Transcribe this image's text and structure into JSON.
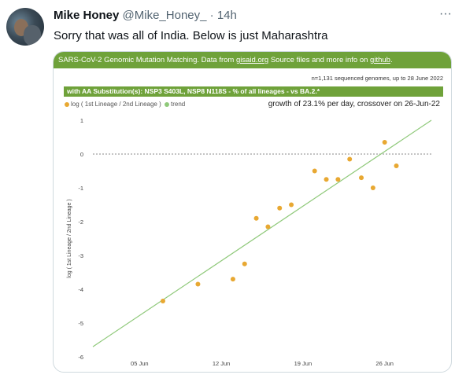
{
  "tweet": {
    "author_name": "Mike Honey",
    "author_handle": "@Mike_Honey_",
    "separator": "·",
    "time": "14h",
    "more_icon": "···",
    "text": "Sorry that was all of India. Below is just Maharashtra"
  },
  "chart": {
    "title_prefix": "SARS-CoV-2 Genomic Mutation Matching. Data from ",
    "title_link1": "gisaid.org",
    "title_mid": " Source files and more info on ",
    "title_link2": "github",
    "title_suffix": ".",
    "meta": "n=1,131 sequenced genomes, up to 28 June 2022",
    "band": "with AA Substitution(s): NSP3 S403L, NSP8 N118S - % of all lineages -  vs BA.2.*",
    "legend_series": "log ( 1st Lineage / 2nd Lineage )",
    "legend_trend": "trend",
    "growth_note": "growth of 23.1% per day, crossover on 26-Jun-22",
    "colors": {
      "accent": "#6fa23a",
      "points": "#e8a832",
      "trend": "#8fc97a",
      "legend_trend": "#8fc97a"
    }
  },
  "chart_data": {
    "type": "scatter",
    "ylabel": "log ( 1st Lineage / 2nd Lineage )",
    "xlabel": "",
    "x_ticks": [
      "05 Jun",
      "12 Jun",
      "19 Jun",
      "26 Jun"
    ],
    "ylim": [
      -6,
      1
    ],
    "y_ticks": [
      1,
      0,
      -1,
      -2,
      -3,
      -4,
      -5,
      -6
    ],
    "series": [
      {
        "name": "log ( 1st Lineage / 2nd Lineage )",
        "points": [
          {
            "x": "2022-06-07",
            "y": -4.35
          },
          {
            "x": "2022-06-10",
            "y": -3.85
          },
          {
            "x": "2022-06-13",
            "y": -3.7
          },
          {
            "x": "2022-06-14",
            "y": -3.25
          },
          {
            "x": "2022-06-15",
            "y": -1.9
          },
          {
            "x": "2022-06-16",
            "y": -2.15
          },
          {
            "x": "2022-06-17",
            "y": -1.6
          },
          {
            "x": "2022-06-18",
            "y": -1.5
          },
          {
            "x": "2022-06-20",
            "y": -0.5
          },
          {
            "x": "2022-06-21",
            "y": -0.75
          },
          {
            "x": "2022-06-22",
            "y": -0.75
          },
          {
            "x": "2022-06-23",
            "y": -0.15
          },
          {
            "x": "2022-06-24",
            "y": -0.7
          },
          {
            "x": "2022-06-25",
            "y": -1.0
          },
          {
            "x": "2022-06-26",
            "y": 0.35
          },
          {
            "x": "2022-06-27",
            "y": -0.35
          }
        ]
      },
      {
        "name": "trend",
        "type": "line",
        "points": [
          {
            "x": "2022-06-01",
            "y": -5.7
          },
          {
            "x": "2022-06-30",
            "y": 1.0
          }
        ]
      }
    ],
    "reference_line_y": 0,
    "grid": false,
    "legend_position": "top-left"
  }
}
